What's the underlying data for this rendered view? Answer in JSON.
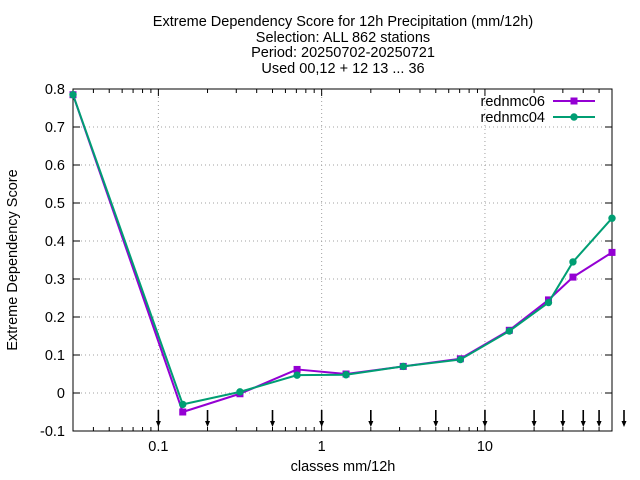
{
  "chart_data": {
    "type": "line",
    "title_lines": [
      "Extreme Dependency Score  for 12h Precipitation (mm/12h)",
      "Selection: ALL    862 stations",
      "Period: 20250702-20250721",
      "Used 00,12 + 12 13 ... 36"
    ],
    "xlabel": "classes mm/12h",
    "ylabel": "Extreme Dependency Score",
    "x_scale": "log",
    "xlim": [
      0.03,
      60
    ],
    "ylim": [
      -0.1,
      0.8
    ],
    "x_ticks": [
      {
        "value": 0.1,
        "label": "0.1"
      },
      {
        "value": 1,
        "label": "1"
      },
      {
        "value": 10,
        "label": "10"
      }
    ],
    "y_ticks": [
      {
        "value": -0.1,
        "label": "-0.1"
      },
      {
        "value": 0,
        "label": "0"
      },
      {
        "value": 0.1,
        "label": "0.1"
      },
      {
        "value": 0.2,
        "label": "0.2"
      },
      {
        "value": 0.3,
        "label": "0.3"
      },
      {
        "value": 0.4,
        "label": "0.4"
      },
      {
        "value": 0.5,
        "label": "0.5"
      },
      {
        "value": 0.6,
        "label": "0.6"
      },
      {
        "value": 0.7,
        "label": "0.7"
      },
      {
        "value": 0.8,
        "label": "0.8"
      }
    ],
    "threshold_markers": [
      0.1,
      0.2,
      0.5,
      1,
      2,
      5,
      10,
      20,
      30,
      40,
      50,
      60
    ],
    "grid": true,
    "legend_position": "top-right",
    "series": [
      {
        "name": "rednmc06",
        "color": "#9400d3",
        "marker": "square",
        "x": [
          0.03,
          0.141,
          0.316,
          0.707,
          1.41,
          3.16,
          7.07,
          14.1,
          24.5,
          34.6,
          60
        ],
        "y": [
          0.785,
          -0.05,
          -0.002,
          0.062,
          0.05,
          0.07,
          0.09,
          0.165,
          0.245,
          0.305,
          0.37
        ]
      },
      {
        "name": "rednmc04",
        "color": "#009e73",
        "marker": "circle",
        "x": [
          0.03,
          0.141,
          0.316,
          0.707,
          1.41,
          3.16,
          7.07,
          14.1,
          24.5,
          34.6,
          60
        ],
        "y": [
          0.785,
          -0.03,
          0.003,
          0.047,
          0.048,
          0.07,
          0.088,
          0.163,
          0.238,
          0.345,
          0.46
        ]
      }
    ]
  }
}
